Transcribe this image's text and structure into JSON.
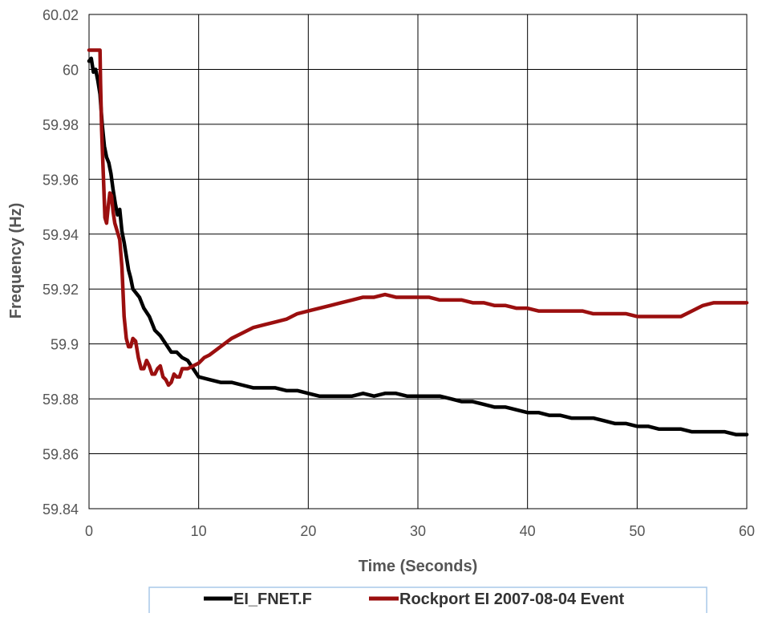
{
  "chart_data": {
    "type": "line",
    "title": "",
    "xlabel": "Time (Seconds)",
    "ylabel": "Frequency (Hz)",
    "xlim": [
      0,
      60
    ],
    "ylim": [
      59.84,
      60.02
    ],
    "x_ticks": [
      0,
      10,
      20,
      30,
      40,
      50,
      60
    ],
    "x_tick_labels": [
      "0",
      "10",
      "20",
      "30",
      "40",
      "50",
      "60"
    ],
    "y_ticks": [
      59.84,
      59.86,
      59.88,
      59.9,
      59.92,
      59.94,
      59.96,
      59.98,
      60.0,
      60.02
    ],
    "y_tick_labels": [
      "59.84",
      "59.86",
      "59.88",
      "59.9",
      "59.92",
      "59.94",
      "59.96",
      "59.98",
      "60",
      "60.02"
    ],
    "grid": true,
    "legend_position": "bottom",
    "series": [
      {
        "name": "EI_FNET.F",
        "color": "#000000",
        "x": [
          0,
          0.2,
          0.4,
          0.6,
          0.8,
          1.0,
          1.2,
          1.4,
          1.6,
          1.8,
          2.0,
          2.2,
          2.4,
          2.6,
          2.8,
          3.0,
          3.2,
          3.4,
          3.6,
          3.8,
          4.0,
          4.2,
          4.4,
          4.6,
          4.8,
          5.0,
          5.5,
          6.0,
          6.5,
          7.0,
          7.5,
          8.0,
          8.5,
          9.0,
          9.5,
          10.0,
          11,
          12,
          13,
          14,
          15,
          16,
          17,
          18,
          19,
          20,
          21,
          22,
          23,
          24,
          25,
          26,
          27,
          28,
          29,
          30,
          31,
          32,
          33,
          34,
          35,
          36,
          37,
          38,
          39,
          40,
          41,
          42,
          43,
          44,
          45,
          46,
          47,
          48,
          49,
          50,
          51,
          52,
          53,
          54,
          55,
          56,
          57,
          58,
          59,
          60
        ],
        "y": [
          60.003,
          60.004,
          59.999,
          60.0,
          59.996,
          59.991,
          59.98,
          59.972,
          59.968,
          59.966,
          59.962,
          59.956,
          59.951,
          59.947,
          59.949,
          59.941,
          59.937,
          59.932,
          59.927,
          59.924,
          59.92,
          59.919,
          59.918,
          59.917,
          59.915,
          59.913,
          59.91,
          59.905,
          59.903,
          59.9,
          59.897,
          59.897,
          59.895,
          59.894,
          59.891,
          59.888,
          59.887,
          59.886,
          59.886,
          59.885,
          59.884,
          59.884,
          59.884,
          59.883,
          59.883,
          59.882,
          59.881,
          59.881,
          59.881,
          59.881,
          59.882,
          59.881,
          59.882,
          59.882,
          59.881,
          59.881,
          59.881,
          59.881,
          59.88,
          59.879,
          59.879,
          59.878,
          59.877,
          59.877,
          59.876,
          59.875,
          59.875,
          59.874,
          59.874,
          59.873,
          59.873,
          59.873,
          59.872,
          59.871,
          59.871,
          59.87,
          59.87,
          59.869,
          59.869,
          59.869,
          59.868,
          59.868,
          59.868,
          59.868,
          59.867,
          59.867
        ]
      },
      {
        "name": "Rockport EI 2007-08-04 Event",
        "color": "#9b0f0f",
        "x": [
          0,
          0.5,
          1.0,
          1.05,
          1.15,
          1.3,
          1.45,
          1.6,
          1.75,
          1.9,
          2.05,
          2.2,
          2.35,
          2.5,
          2.65,
          2.8,
          3.0,
          3.2,
          3.4,
          3.6,
          3.8,
          4.0,
          4.25,
          4.5,
          4.75,
          5.0,
          5.25,
          5.5,
          5.75,
          6.0,
          6.25,
          6.5,
          6.75,
          7.0,
          7.25,
          7.5,
          7.75,
          8.0,
          8.25,
          8.5,
          8.75,
          9.0,
          9.5,
          10.0,
          10.5,
          11.0,
          12,
          13,
          14,
          15,
          16,
          17,
          18,
          19,
          20,
          21,
          22,
          23,
          24,
          25,
          26,
          27,
          28,
          29,
          30,
          31,
          32,
          33,
          34,
          35,
          36,
          37,
          38,
          39,
          40,
          41,
          42,
          43,
          44,
          45,
          46,
          47,
          48,
          49,
          50,
          51,
          52,
          53,
          54,
          55,
          56,
          57,
          58,
          59,
          60
        ],
        "y": [
          60.007,
          60.007,
          60.007,
          59.995,
          59.978,
          59.962,
          59.946,
          59.944,
          59.95,
          59.955,
          59.954,
          59.948,
          59.944,
          59.942,
          59.94,
          59.938,
          59.928,
          59.91,
          59.902,
          59.899,
          59.899,
          59.902,
          59.901,
          59.895,
          59.891,
          59.891,
          59.894,
          59.892,
          59.889,
          59.889,
          59.891,
          59.892,
          59.888,
          59.887,
          59.885,
          59.886,
          59.889,
          59.888,
          59.888,
          59.891,
          59.891,
          59.891,
          59.892,
          59.893,
          59.895,
          59.896,
          59.899,
          59.902,
          59.904,
          59.906,
          59.907,
          59.908,
          59.909,
          59.911,
          59.912,
          59.913,
          59.914,
          59.915,
          59.916,
          59.917,
          59.917,
          59.918,
          59.917,
          59.917,
          59.917,
          59.917,
          59.916,
          59.916,
          59.916,
          59.915,
          59.915,
          59.914,
          59.914,
          59.913,
          59.913,
          59.912,
          59.912,
          59.912,
          59.912,
          59.912,
          59.911,
          59.911,
          59.911,
          59.911,
          59.91,
          59.91,
          59.91,
          59.91,
          59.91,
          59.912,
          59.914,
          59.915,
          59.915,
          59.915,
          59.915
        ]
      }
    ]
  }
}
